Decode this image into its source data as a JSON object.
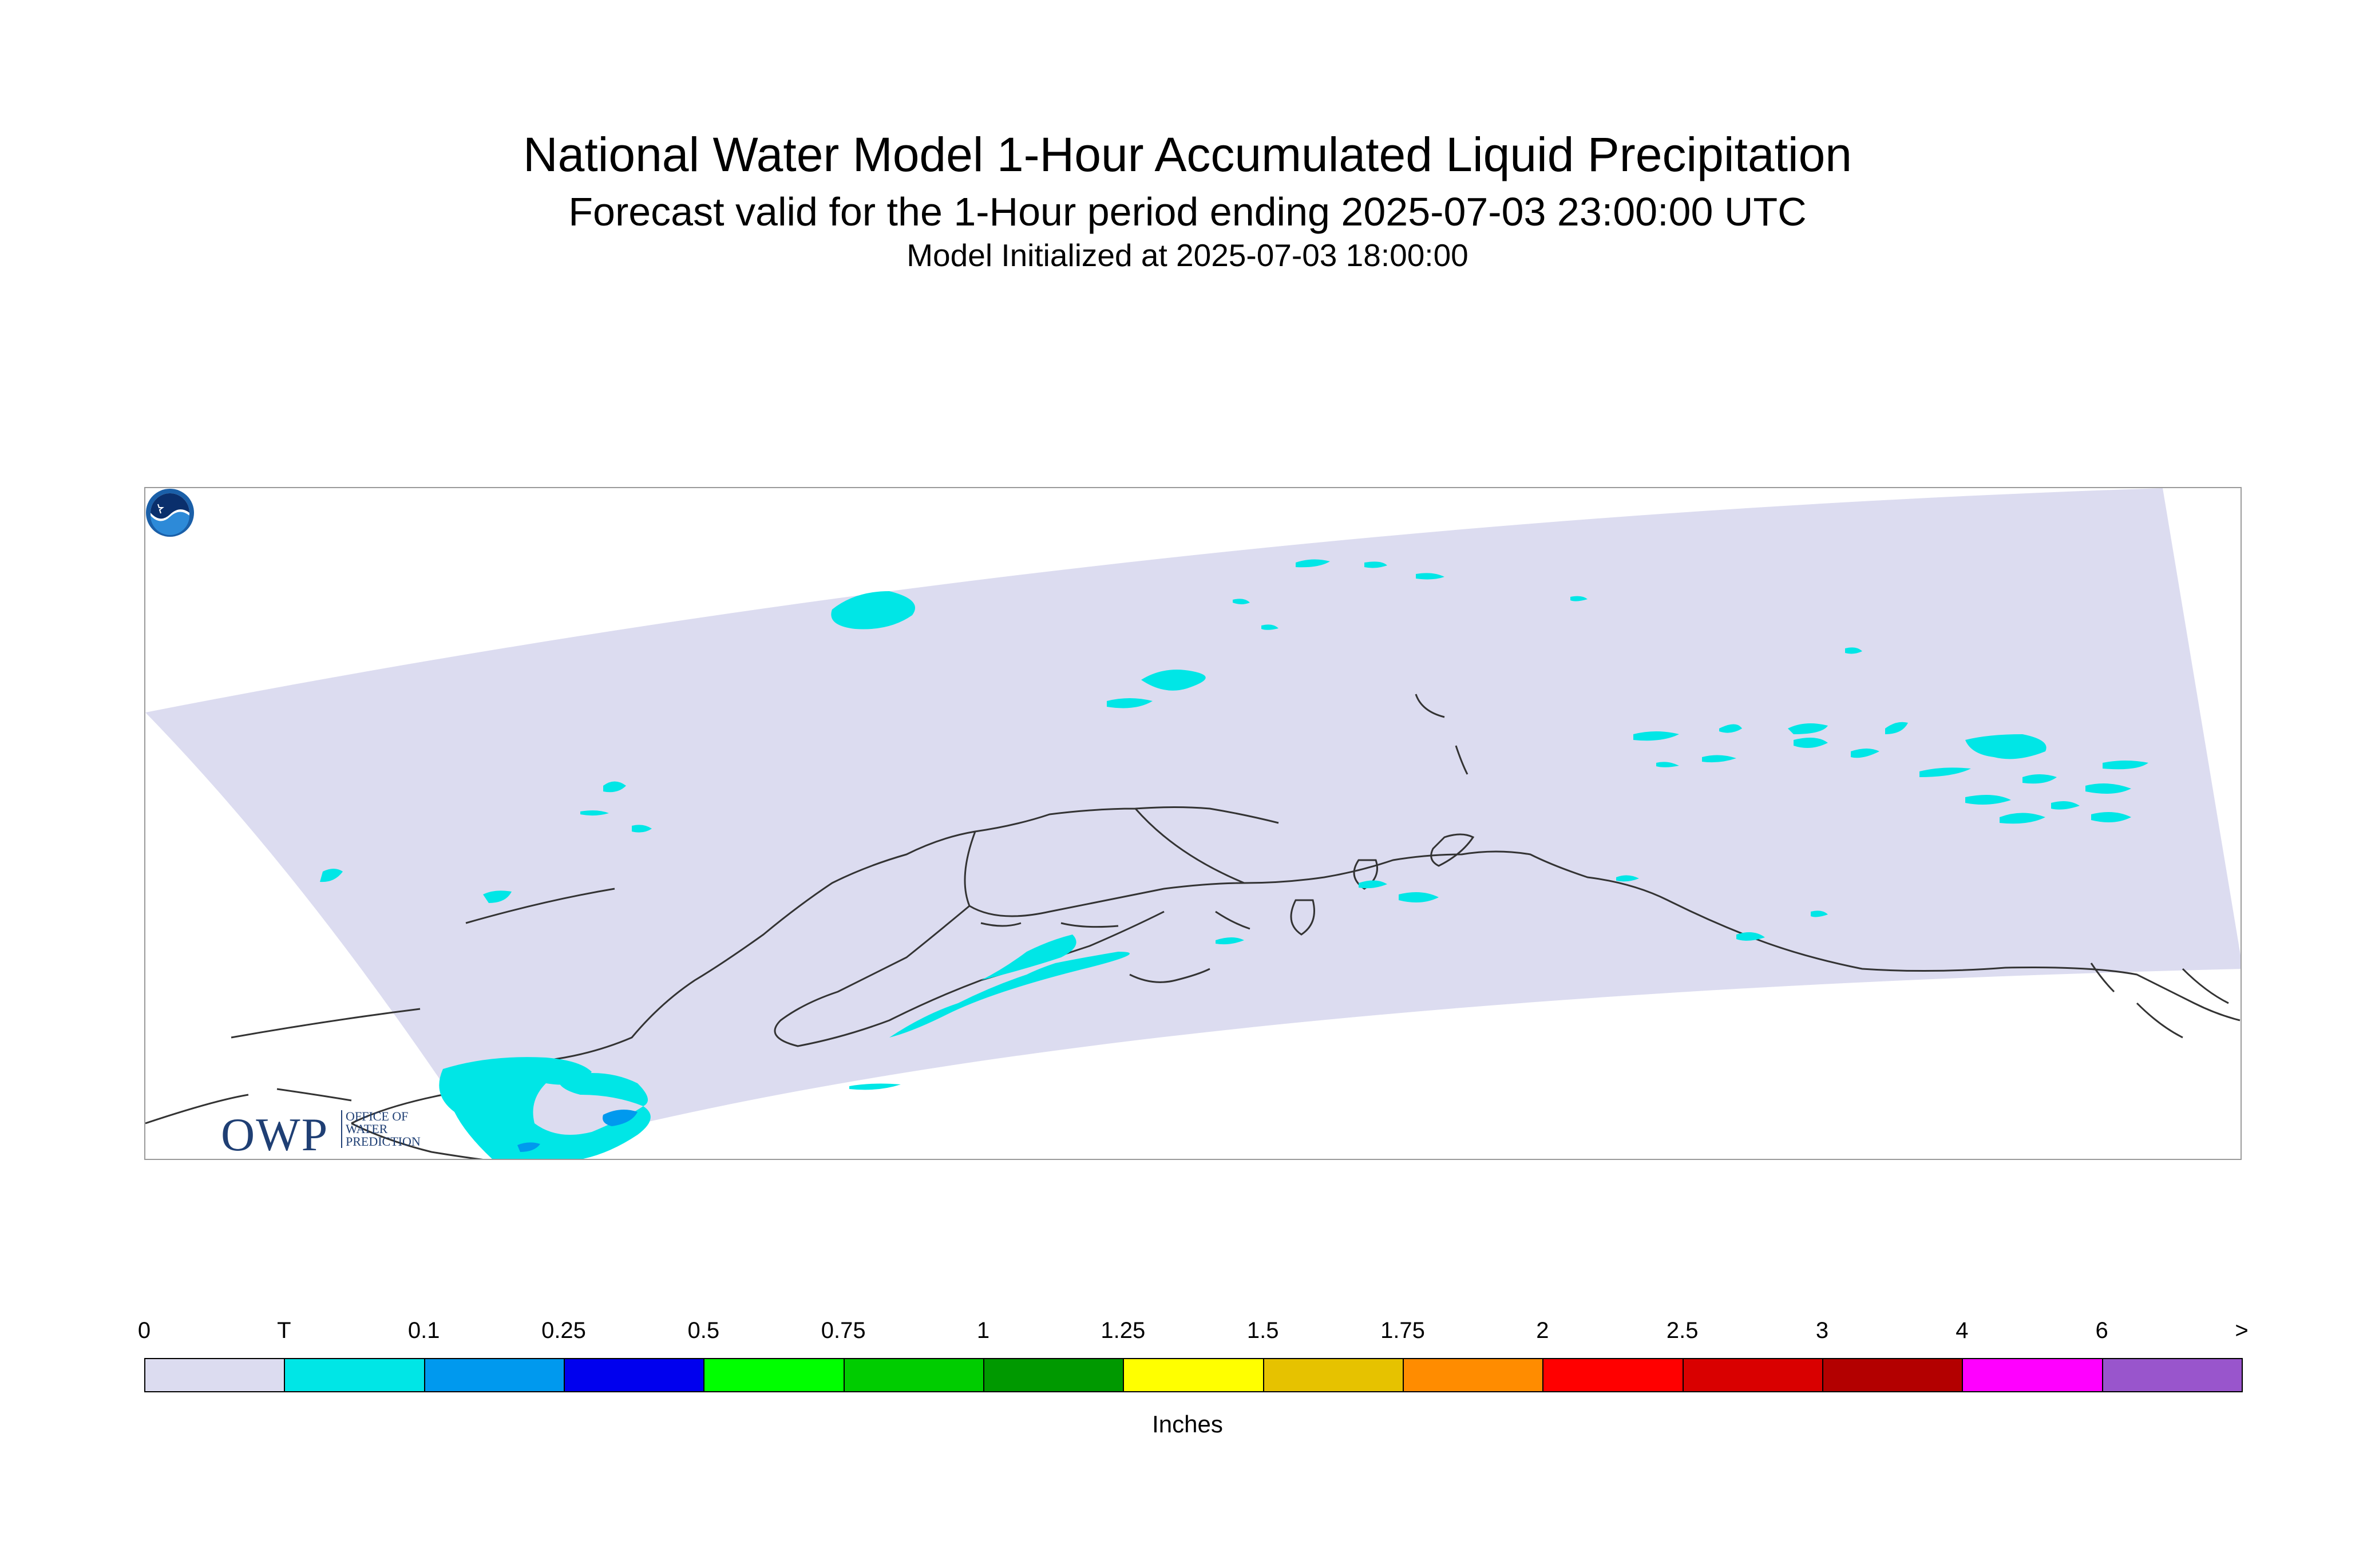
{
  "header": {
    "title": "National Water Model 1-Hour Accumulated Liquid Precipitation",
    "subtitle": "Forecast valid for the 1-Hour period ending 2025-07-03 23:00:00 UTC",
    "init_line": "Model Initialized at 2025-07-03 18:00:00"
  },
  "logos": {
    "owp_letters": "OWP",
    "owp_text": "OFFICE OF WATER PREDICTION",
    "noaa_icon": "noaa-logo-icon"
  },
  "map": {
    "domain_fill": "#dcdcf0",
    "coastline_color": "#333333",
    "light_precip_color": "#00e6e6",
    "moderate_precip_color": "#0099ee"
  },
  "legend": {
    "units": "Inches",
    "ticks": [
      "0",
      "T",
      "0.1",
      "0.25",
      "0.5",
      "0.75",
      "1",
      "1.25",
      "1.5",
      "1.75",
      "2",
      "2.5",
      "3",
      "4",
      "6",
      ">"
    ],
    "colors": [
      "#dcdcf0",
      "#00e6e6",
      "#0099ee",
      "#0000ee",
      "#00ff00",
      "#00cc00",
      "#009900",
      "#ffff00",
      "#e6c200",
      "#ff8c00",
      "#ff0000",
      "#d90000",
      "#b30000",
      "#ff00ff",
      "#9955cc"
    ]
  }
}
